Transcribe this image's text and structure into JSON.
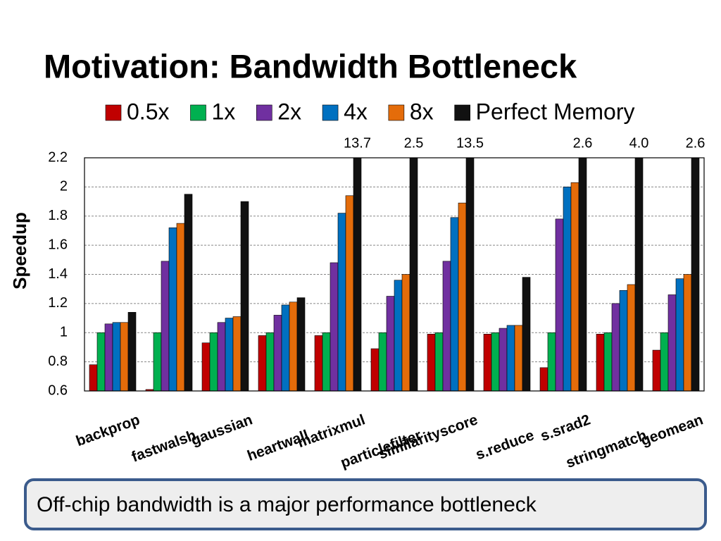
{
  "chart_data": {
    "type": "bar",
    "title": "Motivation: Bandwidth Bottleneck",
    "y_label": "Speedup",
    "categories": [
      "backprop",
      "fastwalsh",
      "gaussian",
      "heartwall",
      "matrixmul",
      "particlefilter",
      "similarityscore",
      "s.reduce",
      "s.srad2",
      "stringmatch",
      "geomean"
    ],
    "series": [
      {
        "name": "0.5x",
        "color": "#c00000",
        "values": [
          0.78,
          0.61,
          0.93,
          0.98,
          0.98,
          0.89,
          0.99,
          0.99,
          0.76,
          0.99,
          0.88
        ]
      },
      {
        "name": "1x",
        "color": "#00b050",
        "values": [
          1.0,
          1.0,
          1.0,
          1.0,
          1.0,
          1.0,
          1.0,
          1.0,
          1.0,
          1.0,
          1.0
        ]
      },
      {
        "name": "2x",
        "color": "#7030a0",
        "values": [
          1.06,
          1.49,
          1.07,
          1.12,
          1.48,
          1.25,
          1.49,
          1.03,
          1.78,
          1.2,
          1.26
        ]
      },
      {
        "name": "4x",
        "color": "#0070c0",
        "values": [
          1.07,
          1.72,
          1.1,
          1.19,
          1.82,
          1.36,
          1.79,
          1.05,
          2.0,
          1.29,
          1.37
        ]
      },
      {
        "name": "8x",
        "color": "#e46c0a",
        "values": [
          1.07,
          1.75,
          1.11,
          1.21,
          1.94,
          1.4,
          1.89,
          1.05,
          2.03,
          1.33,
          1.4
        ]
      },
      {
        "name": "Perfect Memory",
        "color": "#111111",
        "values": [
          1.14,
          1.95,
          1.9,
          1.24,
          13.7,
          2.5,
          13.5,
          1.38,
          2.6,
          4.0,
          2.6
        ],
        "value_labels": [
          null,
          null,
          null,
          null,
          "13.7",
          "2.5",
          "13.5",
          null,
          "2.6",
          "4.0",
          "2.6"
        ]
      }
    ],
    "ylim": [
      0.6,
      2.2
    ],
    "yticks": [
      0.6,
      0.8,
      1,
      1.2,
      1.4,
      1.6,
      1.8,
      2,
      2.2
    ],
    "grid": true
  },
  "callout": "Off-chip bandwidth is a major performance bottleneck"
}
